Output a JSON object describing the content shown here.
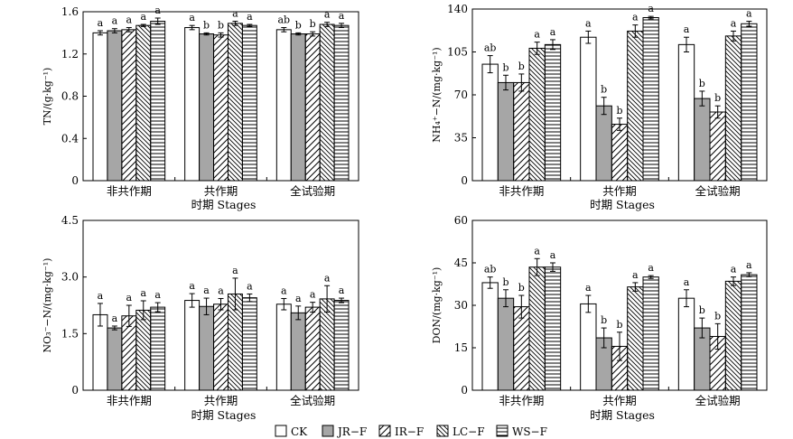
{
  "legend": [
    {
      "key": "CK",
      "label": "CK",
      "fill": "#ffffff",
      "pattern": "none"
    },
    {
      "key": "JR",
      "label": "JR−F",
      "fill": "#a6a6a6",
      "pattern": "none"
    },
    {
      "key": "IR",
      "label": "IR−F",
      "fill": "#ffffff",
      "pattern": "diag-up"
    },
    {
      "key": "LC",
      "label": "LC−F",
      "fill": "#ffffff",
      "pattern": "diag-down"
    },
    {
      "key": "WS",
      "label": "WS−F",
      "fill": "#ffffff",
      "pattern": "horizontal"
    }
  ],
  "chart_data": [
    {
      "type": "bar",
      "ylabel": "TN/(g·kg⁻¹)",
      "xlabel": "时期 Stages",
      "categories": [
        "非共作期",
        "共作期",
        "全试验期"
      ],
      "ylim": [
        0,
        1.6
      ],
      "yticks": [
        0,
        0.4,
        0.8,
        1.2,
        1.6
      ],
      "yticklabels": [
        "0",
        "0.4",
        "0.8",
        "1.2",
        "1.6"
      ],
      "series": [
        {
          "name": "CK",
          "values": [
            1.4,
            1.45,
            1.43
          ],
          "errors": [
            0.02,
            0.02,
            0.02
          ],
          "letters": [
            "a",
            "a",
            "ab"
          ]
        },
        {
          "name": "JR−F",
          "values": [
            1.42,
            1.39,
            1.39
          ],
          "errors": [
            0.02,
            0.01,
            0.01
          ],
          "letters": [
            "a",
            "b",
            "b"
          ]
        },
        {
          "name": "IR−F",
          "values": [
            1.43,
            1.38,
            1.39
          ],
          "errors": [
            0.02,
            0.02,
            0.02
          ],
          "letters": [
            "a",
            "b",
            "b"
          ]
        },
        {
          "name": "LC−F",
          "values": [
            1.47,
            1.49,
            1.48
          ],
          "errors": [
            0.01,
            0.02,
            0.02
          ],
          "letters": [
            "a",
            "a",
            "a"
          ]
        },
        {
          "name": "WS−F",
          "values": [
            1.51,
            1.47,
            1.47
          ],
          "errors": [
            0.03,
            0.01,
            0.02
          ],
          "letters": [
            "a",
            "a",
            "a"
          ]
        }
      ]
    },
    {
      "type": "bar",
      "ylabel": "NH₄⁺−N/(mg·kg⁻¹)",
      "xlabel": "时期 Stages",
      "categories": [
        "非共作期",
        "共作期",
        "全试验期"
      ],
      "ylim": [
        0,
        140
      ],
      "yticks": [
        0,
        35,
        70,
        105,
        140
      ],
      "yticklabels": [
        "0",
        "35",
        "70",
        "105",
        "140"
      ],
      "series": [
        {
          "name": "CK",
          "values": [
            95,
            117,
            111
          ],
          "errors": [
            7,
            5,
            6
          ],
          "letters": [
            "ab",
            "a",
            "a"
          ]
        },
        {
          "name": "JR−F",
          "values": [
            80,
            61,
            67
          ],
          "errors": [
            6,
            7,
            6
          ],
          "letters": [
            "b",
            "b",
            "b"
          ]
        },
        {
          "name": "IR−F",
          "values": [
            80,
            46,
            56
          ],
          "errors": [
            7,
            5,
            5
          ],
          "letters": [
            "b",
            "b",
            "b"
          ]
        },
        {
          "name": "LC−F",
          "values": [
            108,
            122,
            118
          ],
          "errors": [
            5,
            5,
            4
          ],
          "letters": [
            "a",
            "a",
            "a"
          ]
        },
        {
          "name": "WS−F",
          "values": [
            111,
            133,
            128
          ],
          "errors": [
            4,
            1,
            2
          ],
          "letters": [
            "a",
            "a",
            "a"
          ]
        }
      ]
    },
    {
      "type": "bar",
      "ylabel": "NO₃⁻−N/(mg·kg⁻¹)",
      "xlabel": "时期 Stages",
      "categories": [
        "非共作期",
        "共作期",
        "全试验期"
      ],
      "ylim": [
        0,
        4.5
      ],
      "yticks": [
        0,
        1.5,
        3.0,
        4.5
      ],
      "yticklabels": [
        "0",
        "1.5",
        "3.0",
        "4.5"
      ],
      "series": [
        {
          "name": "CK",
          "values": [
            2.0,
            2.38,
            2.28
          ],
          "errors": [
            0.3,
            0.18,
            0.15
          ],
          "letters": [
            "a",
            "a",
            "a"
          ]
        },
        {
          "name": "JR−F",
          "values": [
            1.65,
            2.22,
            2.05
          ],
          "errors": [
            0.05,
            0.22,
            0.18
          ],
          "letters": [
            "a",
            "a",
            "a"
          ]
        },
        {
          "name": "IR−F",
          "values": [
            1.97,
            2.28,
            2.2
          ],
          "errors": [
            0.28,
            0.15,
            0.13
          ],
          "letters": [
            "a",
            "a",
            "a"
          ]
        },
        {
          "name": "LC−F",
          "values": [
            2.12,
            2.55,
            2.42
          ],
          "errors": [
            0.25,
            0.42,
            0.35
          ],
          "letters": [
            "a",
            "a",
            "a"
          ]
        },
        {
          "name": "WS−F",
          "values": [
            2.2,
            2.45,
            2.38
          ],
          "errors": [
            0.12,
            0.1,
            0.06
          ],
          "letters": [
            "a",
            "a",
            "a"
          ]
        }
      ]
    },
    {
      "type": "bar",
      "ylabel": "DON/(mg·kg⁻¹)",
      "xlabel": "时期 Stages",
      "categories": [
        "非共作期",
        "共作期",
        "全试验期"
      ],
      "ylim": [
        0,
        60
      ],
      "yticks": [
        0,
        15,
        30,
        45,
        60
      ],
      "yticklabels": [
        "0",
        "15",
        "30",
        "45",
        "60"
      ],
      "series": [
        {
          "name": "CK",
          "values": [
            38,
            30.5,
            32.5
          ],
          "errors": [
            2,
            3,
            3
          ],
          "letters": [
            "ab",
            "a",
            "a"
          ]
        },
        {
          "name": "JR−F",
          "values": [
            32.5,
            18.5,
            22
          ],
          "errors": [
            3,
            3.5,
            3.5
          ],
          "letters": [
            "b",
            "b",
            "b"
          ]
        },
        {
          "name": "IR−F",
          "values": [
            29.5,
            15.5,
            19
          ],
          "errors": [
            4,
            5,
            4.5
          ],
          "letters": [
            "b",
            "b",
            "b"
          ]
        },
        {
          "name": "LC−F",
          "values": [
            43.5,
            36.5,
            38.5
          ],
          "errors": [
            3,
            1.5,
            1.5
          ],
          "letters": [
            "a",
            "a",
            "a"
          ]
        },
        {
          "name": "WS−F",
          "values": [
            43.5,
            40,
            40.8
          ],
          "errors": [
            1.5,
            0.5,
            0.7
          ],
          "letters": [
            "a",
            "a",
            "a"
          ]
        }
      ]
    }
  ]
}
